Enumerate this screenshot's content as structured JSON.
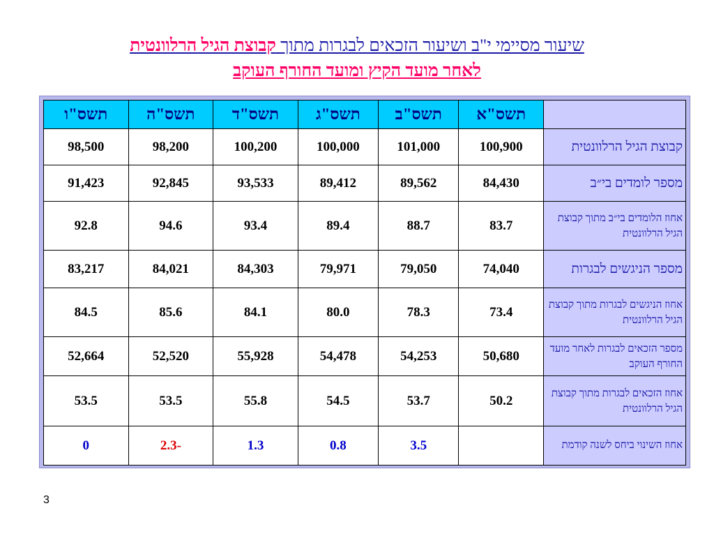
{
  "title": {
    "line1_main": "שיעור מסיימי י\"ב ושיעור הזכאים לבגרות מתוך ",
    "line1_accent": "קבוצת הגיל הרלוונטית",
    "line2": "לאחר מועד הקיץ ומועד החורף העוקב"
  },
  "table": {
    "years": [
      "תשס\"א",
      "תשס\"ב",
      "תשס\"ג",
      "תשס\"ד",
      "תשס\"ה",
      "תשס\"ו"
    ],
    "rows": [
      {
        "label": "קבוצת הגיל הרלוונטית",
        "values": [
          "100,900",
          "101,000",
          "100,000",
          "100,200",
          "98,200",
          "98,500"
        ]
      },
      {
        "label": "מספר לומדים בי״ב",
        "values": [
          "84,430",
          "89,562",
          "89,412",
          "93,533",
          "92,845",
          "91,423"
        ]
      },
      {
        "label": "אחוז הלומדים בי״ב מתוך קבוצת הגיל הרלוונטית",
        "values": [
          "83.7",
          "88.7",
          "89.4",
          "93.4",
          "94.6",
          "92.8"
        ]
      },
      {
        "label": "מספר הניגשים לבגרות",
        "values": [
          "74,040",
          "79,050",
          "79,971",
          "84,303",
          "84,021",
          "83,217"
        ]
      },
      {
        "label": "אחוז הניגשים לבגרות מתוך קבוצת הגיל הרלוונטית",
        "values": [
          "73.4",
          "78.3",
          "80.0",
          "84.1",
          "85.6",
          "84.5"
        ]
      },
      {
        "label": "מספר הזכאים לבגרות לאחר מועד החורף העוקב",
        "values": [
          "50,680",
          "54,253",
          "54,478",
          "55,928",
          "52,520",
          "52,664"
        ]
      },
      {
        "label": "אחוז הזכאים לבגרות מתוך קבוצת הגיל הרלוונטית",
        "values": [
          "50.2",
          "53.7",
          "54.5",
          "55.8",
          "53.5",
          "53.5"
        ]
      },
      {
        "label": "אחוז השינוי ביחס לשנה קודמת",
        "values": [
          "",
          "3.5",
          "0.8",
          "1.3",
          "-2.3",
          "0"
        ]
      }
    ]
  },
  "colors": {
    "title_blue": "#1a1aa8",
    "title_accent": "#ff0066",
    "header_bg": "#00ccff",
    "label_bg": "#ccccff",
    "change_positive": "#0000cc",
    "change_negative": "#dd0000"
  },
  "page_number": "3"
}
